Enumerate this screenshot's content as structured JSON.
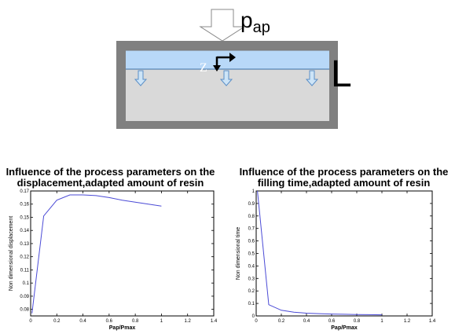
{
  "diagram": {
    "pressure_label": "p",
    "pressure_subscript": "ap",
    "z_label": "Z",
    "length_label": "L",
    "colors": {
      "frame": "#808080",
      "cavity": "#d9d9d9",
      "resin": "#b8d8f8",
      "arrow_fill": "#cde4f7",
      "arrow_stroke": "#5b8fc7"
    }
  },
  "charts": [
    {
      "title_line1": "Influence of the process parameters on the",
      "title_line2": "displacement,adapted amount of resin"
    },
    {
      "title_line1": "Influence of the process parameters on the",
      "title_line2": "filling time,adapted amount of resin"
    }
  ],
  "chart_data": [
    {
      "type": "line",
      "title": "Influence of the process parameters on the displacement,adapted amount of resin",
      "xlabel": "Pap/Pmax",
      "ylabel": "Non dimensional displacement",
      "xlim": [
        0,
        1.4
      ],
      "ylim": [
        0.075,
        0.17
      ],
      "xticks": [
        0,
        0.2,
        0.4,
        0.6,
        0.8,
        1,
        1.2,
        1.4
      ],
      "yticks": [
        0.08,
        0.09,
        0.1,
        0.11,
        0.12,
        0.13,
        0.14,
        0.15,
        0.16,
        0.17
      ],
      "xtick_labels": [
        "0",
        "0.2",
        "0.4",
        "0.6",
        "0.8",
        "1",
        "1.2",
        "1.4"
      ],
      "ytick_labels": [
        "0.08",
        "0.09",
        "0.1",
        "0.11",
        "0.12",
        "0.13",
        "0.14",
        "0.15",
        "0.16",
        "0.17"
      ],
      "x": [
        0.01,
        0.1,
        0.2,
        0.3,
        0.4,
        0.5,
        0.6,
        0.7,
        0.8,
        0.9,
        1.0
      ],
      "y": [
        0.077,
        0.151,
        0.163,
        0.167,
        0.167,
        0.1665,
        0.165,
        0.163,
        0.1615,
        0.16,
        0.1585
      ],
      "line_color": "#4b4bd6",
      "grid": false
    },
    {
      "type": "line",
      "title": "Influence of the process parameters on the filling time,adapted amount of resin",
      "xlabel": "Pap/Pmax",
      "ylabel": "Non dimensional time",
      "xlim": [
        0,
        1.4
      ],
      "ylim": [
        0,
        1
      ],
      "xticks": [
        0,
        0.2,
        0.4,
        0.6,
        0.8,
        1,
        1.2,
        1.4
      ],
      "yticks": [
        0,
        0.1,
        0.2,
        0.3,
        0.4,
        0.5,
        0.6,
        0.7,
        0.8,
        0.9,
        1
      ],
      "xtick_labels": [
        "0",
        "0.2",
        "0.4",
        "0.6",
        "0.8",
        "1",
        "1.2",
        "1.4"
      ],
      "ytick_labels": [
        "0",
        "0.1",
        "0.2",
        "0.3",
        "0.4",
        "0.5",
        "0.6",
        "0.7",
        "0.8",
        "0.9",
        "1"
      ],
      "x": [
        0.01,
        0.1,
        0.2,
        0.3,
        0.4,
        0.5,
        0.6,
        0.7,
        0.8,
        0.9,
        1.0
      ],
      "y": [
        1.0,
        0.09,
        0.045,
        0.03,
        0.022,
        0.018,
        0.015,
        0.013,
        0.011,
        0.01,
        0.009
      ],
      "line_color": "#4b4bd6",
      "grid": false
    }
  ]
}
